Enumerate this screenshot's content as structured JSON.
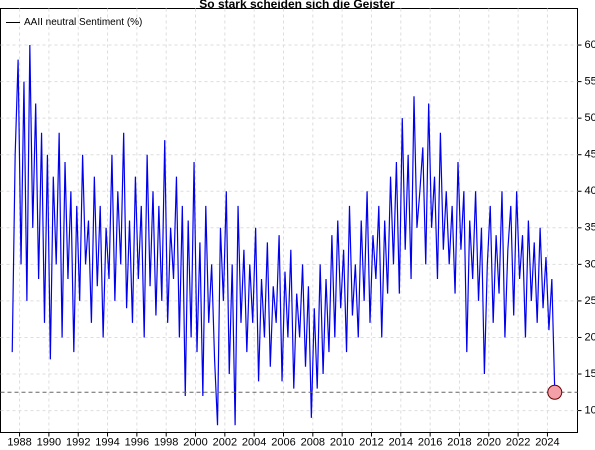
{
  "chart_data": {
    "type": "line",
    "title": "So stark scheiden sich die Geister",
    "xlim": [
      1986.7,
      2026.05
    ],
    "ylim": [
      7,
      65
    ],
    "xticks": [
      1988,
      1990,
      1992,
      1994,
      1996,
      1998,
      2000,
      2002,
      2004,
      2006,
      2008,
      2010,
      2012,
      2014,
      2016,
      2018,
      2020,
      2022,
      2024
    ],
    "yticks": [
      10,
      15,
      20,
      25,
      30,
      35,
      40,
      45,
      50,
      55,
      60
    ],
    "grid": true,
    "legend": "upper left",
    "x": [
      1987.5,
      1987.7,
      1987.9,
      1988.1,
      1988.3,
      1988.5,
      1988.7,
      1988.9,
      1989.1,
      1989.3,
      1989.5,
      1989.7,
      1989.9,
      1990.1,
      1990.3,
      1990.5,
      1990.7,
      1990.9,
      1991.1,
      1991.3,
      1991.5,
      1991.7,
      1991.9,
      1992.1,
      1992.3,
      1992.5,
      1992.7,
      1992.9,
      1993.1,
      1993.3,
      1993.5,
      1993.7,
      1993.9,
      1994.1,
      1994.3,
      1994.5,
      1994.7,
      1994.9,
      1995.1,
      1995.3,
      1995.5,
      1995.7,
      1995.9,
      1996.1,
      1996.3,
      1996.5,
      1996.7,
      1996.9,
      1997.1,
      1997.3,
      1997.5,
      1997.7,
      1997.9,
      1998.1,
      1998.3,
      1998.5,
      1998.7,
      1998.9,
      1999.1,
      1999.3,
      1999.5,
      1999.7,
      1999.9,
      2000.1,
      2000.3,
      2000.5,
      2000.7,
      2000.9,
      2001.1,
      2001.3,
      2001.5,
      2001.7,
      2001.9,
      2002.1,
      2002.3,
      2002.5,
      2002.7,
      2002.9,
      2003.1,
      2003.3,
      2003.5,
      2003.7,
      2003.9,
      2004.1,
      2004.3,
      2004.5,
      2004.7,
      2004.9,
      2005.1,
      2005.3,
      2005.5,
      2005.7,
      2005.9,
      2006.1,
      2006.3,
      2006.5,
      2006.7,
      2006.9,
      2007.1,
      2007.3,
      2007.5,
      2007.7,
      2007.9,
      2008.1,
      2008.3,
      2008.5,
      2008.7,
      2008.9,
      2009.1,
      2009.3,
      2009.5,
      2009.7,
      2009.9,
      2010.1,
      2010.3,
      2010.5,
      2010.7,
      2010.9,
      2011.1,
      2011.3,
      2011.5,
      2011.7,
      2011.9,
      2012.1,
      2012.3,
      2012.5,
      2012.7,
      2012.9,
      2013.1,
      2013.3,
      2013.5,
      2013.7,
      2013.9,
      2014.1,
      2014.3,
      2014.5,
      2014.7,
      2014.9,
      2015.1,
      2015.3,
      2015.5,
      2015.7,
      2015.9,
      2016.1,
      2016.3,
      2016.5,
      2016.7,
      2016.9,
      2017.1,
      2017.3,
      2017.5,
      2017.7,
      2017.9,
      2018.1,
      2018.3,
      2018.5,
      2018.7,
      2018.9,
      2019.1,
      2019.3,
      2019.5,
      2019.7,
      2019.9,
      2020.1,
      2020.3,
      2020.5,
      2020.7,
      2020.9,
      2021.1,
      2021.3,
      2021.5,
      2021.7,
      2021.9,
      2022.1,
      2022.3,
      2022.5,
      2022.7,
      2022.9,
      2023.1,
      2023.3,
      2023.5,
      2023.7,
      2023.9,
      2024.1,
      2024.3,
      2024.5
    ],
    "series": [
      {
        "name": "AAII neutral Sentiment (%)",
        "color": "#0000ee",
        "values": [
          18,
          45,
          58,
          30,
          55,
          25,
          60,
          35,
          52,
          28,
          48,
          22,
          45,
          17,
          42,
          30,
          48,
          20,
          44,
          28,
          40,
          18,
          38,
          25,
          45,
          30,
          36,
          22,
          42,
          27,
          38,
          20,
          35,
          28,
          45,
          25,
          40,
          30,
          48,
          24,
          36,
          22,
          42,
          28,
          38,
          20,
          45,
          27,
          40,
          23,
          38,
          25,
          47,
          22,
          35,
          28,
          42,
          20,
          38,
          12,
          36,
          20,
          44,
          18,
          33,
          12,
          38,
          22,
          30,
          17,
          8,
          35,
          25,
          40,
          15,
          30,
          8,
          38,
          22,
          32,
          18,
          30,
          22,
          35,
          14,
          28,
          20,
          33,
          16,
          27,
          22,
          34,
          14,
          29,
          20,
          32,
          13,
          26,
          20,
          30,
          16,
          27,
          9,
          24,
          13,
          30,
          15,
          28,
          18,
          34,
          20,
          36,
          24,
          32,
          18,
          38,
          23,
          30,
          20,
          36,
          25,
          40,
          22,
          34,
          28,
          38,
          20,
          36,
          26,
          42,
          30,
          44,
          26,
          50,
          32,
          45,
          28,
          53,
          35,
          40,
          46,
          30,
          52,
          35,
          42,
          28,
          48,
          32,
          40,
          30,
          38,
          26,
          44,
          32,
          40,
          18,
          36,
          28,
          40,
          25,
          35,
          15,
          30,
          38,
          22,
          34,
          26,
          40,
          20,
          32,
          38,
          23,
          40,
          28,
          34,
          20,
          36,
          25,
          33,
          22,
          35,
          24,
          31,
          21,
          28,
          12.5
        ]
      }
    ]
  }
}
